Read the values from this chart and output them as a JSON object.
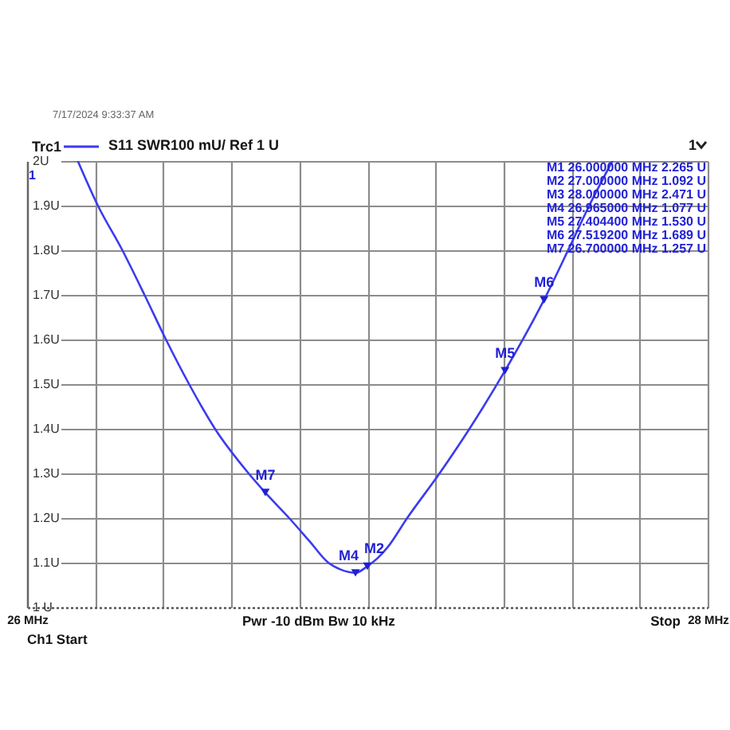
{
  "chart_data": {
    "type": "line",
    "x": [
      26.149,
      26.208,
      26.28,
      26.345,
      26.408,
      26.476,
      26.552,
      26.651,
      26.7,
      26.77,
      26.83,
      26.885,
      26.92,
      26.945,
      26.965,
      27.0,
      27.03,
      27.06,
      27.117,
      27.212,
      27.3,
      27.4044,
      27.5192,
      27.596,
      27.652,
      27.72
    ],
    "series": [
      {
        "name": "Trc1",
        "color": "#3b3bef",
        "values": [
          2.0,
          1.9,
          1.8,
          1.7,
          1.6,
          1.5,
          1.4,
          1.3,
          1.257,
          1.2,
          1.148,
          1.1,
          1.085,
          1.079,
          1.077,
          1.092,
          1.11,
          1.135,
          1.2,
          1.3,
          1.4,
          1.53,
          1.689,
          1.81,
          1.9,
          2.0
        ]
      },
      {
        "type": "scatter",
        "marker": "triangle",
        "color": "#1f1fd6",
        "x": [
          26.7,
          26.965,
          27.0,
          27.4044,
          27.5192
        ],
        "values": [
          1.257,
          1.077,
          1.092,
          1.53,
          1.689
        ]
      }
    ],
    "xlim": [
      26,
      28
    ],
    "xticks": [
      {
        "value": 26,
        "label": "26 MHz"
      },
      {
        "value": 26.2,
        "label": null
      },
      {
        "value": 26.4,
        "label": null
      },
      {
        "value": 26.6,
        "label": null
      },
      {
        "value": 26.8,
        "label": null
      },
      {
        "value": 27,
        "label": null
      },
      {
        "value": 27.2,
        "label": null
      },
      {
        "value": 27.4,
        "label": null
      },
      {
        "value": 27.6,
        "label": null
      },
      {
        "value": 27.8,
        "label": null
      },
      {
        "value": 28,
        "label": "28 MHz"
      }
    ],
    "ylim": [
      1,
      2
    ],
    "yticks": [
      {
        "value": 1,
        "label": "1 U"
      },
      {
        "value": 1.1,
        "label": "1.1U"
      },
      {
        "value": 1.2,
        "label": "1.2U"
      },
      {
        "value": 1.3,
        "label": "1.3U"
      },
      {
        "value": 1.4,
        "label": "1.4U"
      },
      {
        "value": 1.5,
        "label": "1.5U"
      },
      {
        "value": 1.6,
        "label": "1.6U"
      },
      {
        "value": 1.7,
        "label": "1.7U"
      },
      {
        "value": 1.8,
        "label": "1.8U"
      },
      {
        "value": 1.9,
        "label": "1.9U"
      },
      {
        "value": 2,
        "label": "2U"
      }
    ],
    "grid": true,
    "legend": "top left",
    "annotations": [
      "7/17/2024 9:33:37 AM",
      "S11",
      "SWR",
      "100 mU/ Ref 1 U",
      "1",
      "1",
      "M1 26.000000 MHz 2.265 U",
      "M2 27.000000 MHz 1.092 U",
      "M3 28.000000 MHz 2.471 U",
      "M4 26.965000 MHz 1.077 U",
      "M5 27.404400 MHz 1.530 U",
      "M6 27.519200 MHz 1.689 U",
      "M7 26.700000 MHz 1.257 U",
      "Ch1 Start",
      "Pwr -10 dBm Bw 10 kHz",
      "Stop",
      {
        "text": "M7",
        "x": 26.7,
        "y": 1.257
      },
      {
        "text": "M4",
        "x": 26.965,
        "y": 1.077
      },
      {
        "text": "M2",
        "x": 27.0,
        "y": 1.092
      },
      {
        "text": "M5",
        "x": 27.4044,
        "y": 1.53
      },
      {
        "text": "M6",
        "x": 27.5192,
        "y": 1.689
      }
    ]
  }
}
